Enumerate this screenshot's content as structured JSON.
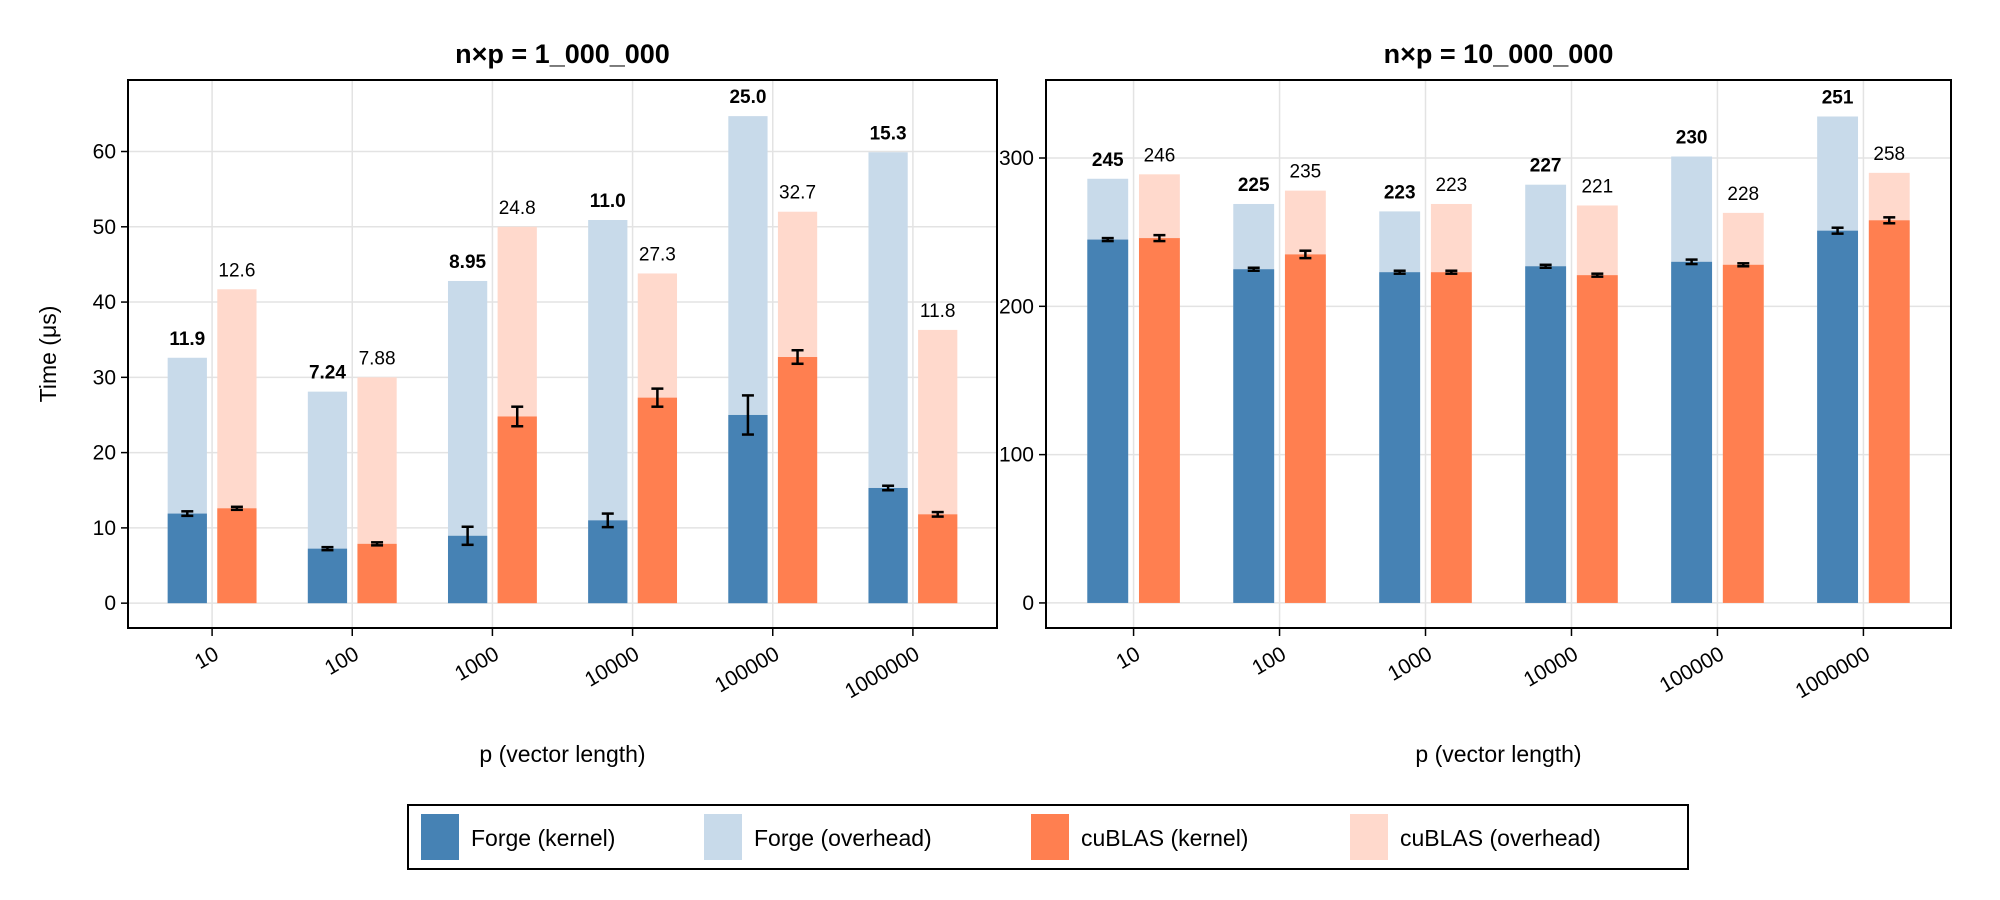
{
  "colors": {
    "forge_kernel": "#4682b4",
    "forge_overhead": "#c8daea",
    "cublas_kernel": "#ff7f50",
    "cublas_overhead": "#ffd9cc"
  },
  "legend": {
    "placement": "bottom",
    "items": [
      {
        "label": "Forge (kernel)",
        "color_key": "forge_kernel"
      },
      {
        "label": "Forge (overhead)",
        "color_key": "forge_overhead"
      },
      {
        "label": "cuBLAS (kernel)",
        "color_key": "cublas_kernel"
      },
      {
        "label": "cuBLAS (overhead)",
        "color_key": "cublas_overhead"
      }
    ]
  },
  "chart_data": [
    {
      "type": "bar",
      "title": "n×p = 1_000_000",
      "xlabel": "p (vector length)",
      "ylabel": "Time (μs)",
      "categories": [
        "10",
        "100",
        "1000",
        "10000",
        "100000",
        "1000000"
      ],
      "ylim": [
        -3.3,
        69.5
      ],
      "yticks": [
        0,
        10,
        20,
        30,
        40,
        50,
        60
      ],
      "grid": true,
      "series": [
        {
          "name": "Forge (kernel)",
          "values": [
            11.9,
            7.24,
            8.95,
            11.0,
            25.0,
            15.3
          ],
          "errors": [
            0.3,
            0.2,
            1.2,
            0.9,
            2.6,
            0.3
          ],
          "labels": [
            "11.9",
            "7.24",
            "8.95",
            "11.0",
            "25.0",
            "15.3"
          ]
        },
        {
          "name": "Forge (overhead)",
          "totals": [
            32.6,
            28.1,
            42.8,
            50.9,
            64.7,
            59.9
          ]
        },
        {
          "name": "cuBLAS (kernel)",
          "values": [
            12.6,
            7.88,
            24.8,
            27.3,
            32.7,
            11.8
          ],
          "errors": [
            0.2,
            0.2,
            1.3,
            1.2,
            0.9,
            0.3
          ],
          "labels": [
            "12.6",
            "7.88",
            "24.8",
            "27.3",
            "32.7",
            "11.8"
          ]
        },
        {
          "name": "cuBLAS (overhead)",
          "totals": [
            41.7,
            30.0,
            50.0,
            43.8,
            52.0,
            36.3
          ]
        }
      ]
    },
    {
      "type": "bar",
      "title": "n×p = 10_000_000",
      "xlabel": "p (vector length)",
      "ylabel": "",
      "categories": [
        "10",
        "100",
        "1000",
        "10000",
        "100000",
        "1000000"
      ],
      "ylim": [
        -16.9,
        352.6
      ],
      "yticks": [
        0,
        100,
        200,
        300
      ],
      "grid": true,
      "series": [
        {
          "name": "Forge (kernel)",
          "values": [
            245,
            225,
            223,
            227,
            230,
            251
          ],
          "errors": [
            1,
            1,
            1,
            1,
            1.5,
            2
          ],
          "labels": [
            "245",
            "225",
            "223",
            "227",
            "230",
            "251"
          ]
        },
        {
          "name": "Forge (overhead)",
          "totals": [
            286,
            269,
            264,
            282,
            301,
            328
          ]
        },
        {
          "name": "cuBLAS (kernel)",
          "values": [
            246,
            235,
            223,
            221,
            228,
            258
          ],
          "errors": [
            2,
            2.5,
            1,
            1,
            1,
            2
          ],
          "labels": [
            "246",
            "235",
            "223",
            "221",
            "228",
            "258"
          ]
        },
        {
          "name": "cuBLAS (overhead)",
          "totals": [
            289,
            278,
            269,
            268,
            263,
            290
          ]
        }
      ]
    }
  ]
}
